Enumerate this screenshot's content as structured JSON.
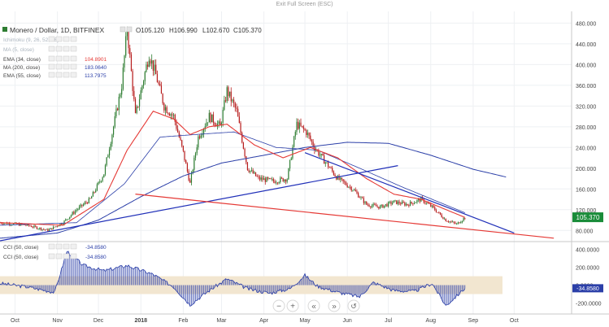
{
  "window": {
    "exit_label": "Exit Full Screen (ESC)"
  },
  "header": {
    "symbol": "Monero / Dollar, 1D, BITFINEX",
    "ohlc": [
      {
        "key": "O",
        "value": "105.120"
      },
      {
        "key": "H",
        "value": "106.990"
      },
      {
        "key": "L",
        "value": "102.670"
      },
      {
        "key": "C",
        "value": "105.370"
      }
    ]
  },
  "indicators": [
    {
      "label": "Ichimoku (9, 26, 52, 26)",
      "value": "",
      "color": "#aab4be"
    },
    {
      "label": "MA (5, close)",
      "value": "",
      "color": "#aab4be"
    },
    {
      "label": "EMA (34, close)",
      "value": "104.8901",
      "color": "#e53935"
    },
    {
      "label": "MA (200, close)",
      "value": "183.0640",
      "color": "#2b3fa8"
    },
    {
      "label": "EMA (55, close)",
      "value": "113.7975",
      "color": "#2b3fa8"
    }
  ],
  "price_axis": {
    "ticks": [
      "480.000",
      "440.000",
      "400.000",
      "360.000",
      "320.000",
      "280.000",
      "240.000",
      "200.000",
      "160.000",
      "120.000",
      "80.000"
    ],
    "current": "105.370"
  },
  "cci_panel": {
    "legends": [
      {
        "label": "CCI (50, close)",
        "value": "-34.8580"
      },
      {
        "label": "CCI (50, close)",
        "value": "-34.8580"
      }
    ],
    "ticks": [
      "400.0000",
      "200.0000",
      "0.0000",
      "-200.0000"
    ]
  },
  "time_axis": [
    "Oct",
    "Nov",
    "Dec",
    "2018",
    "Feb",
    "Mar",
    "Apr",
    "May",
    "Jun",
    "Jul",
    "Aug",
    "Sep",
    "Oct"
  ],
  "toolbar": {
    "minus": "−",
    "plus": "+",
    "back": "«",
    "fwd": "»",
    "reset": "↺"
  },
  "colors": {
    "up": "#2e7d32",
    "down": "#b71c1c",
    "ema34": "#e53935",
    "ema55": "#2b3fa8",
    "ma200": "#2b3fa8",
    "cci": "#2b3fa8",
    "cci_band": "#f2e6d0",
    "trend_blue": "#1f2fb8",
    "trend_red": "#e53935"
  },
  "chart_data": {
    "type": "candlestick",
    "ylim": [
      60,
      490
    ],
    "anchor_closes": [
      [
        "2017-09-20",
        95
      ],
      [
        "2017-10-10",
        90
      ],
      [
        "2017-10-25",
        80
      ],
      [
        "2017-11-05",
        95
      ],
      [
        "2017-11-15",
        120
      ],
      [
        "2017-11-25",
        140
      ],
      [
        "2017-12-05",
        190
      ],
      [
        "2017-12-12",
        280
      ],
      [
        "2017-12-18",
        360
      ],
      [
        "2017-12-22",
        470
      ],
      [
        "2017-12-28",
        300
      ],
      [
        "2018-01-07",
        420
      ],
      [
        "2018-01-12",
        380
      ],
      [
        "2018-01-18",
        320
      ],
      [
        "2018-01-25",
        300
      ],
      [
        "2018-02-01",
        230
      ],
      [
        "2018-02-06",
        170
      ],
      [
        "2018-02-12",
        260
      ],
      [
        "2018-02-20",
        300
      ],
      [
        "2018-02-28",
        280
      ],
      [
        "2018-03-05",
        350
      ],
      [
        "2018-03-12",
        310
      ],
      [
        "2018-03-20",
        200
      ],
      [
        "2018-03-28",
        180
      ],
      [
        "2018-04-08",
        175
      ],
      [
        "2018-04-18",
        180
      ],
      [
        "2018-04-25",
        285
      ],
      [
        "2018-05-02",
        270
      ],
      [
        "2018-05-08",
        240
      ],
      [
        "2018-05-15",
        215
      ],
      [
        "2018-05-25",
        180
      ],
      [
        "2018-06-05",
        160
      ],
      [
        "2018-06-15",
        130
      ],
      [
        "2018-06-25",
        125
      ],
      [
        "2018-07-05",
        135
      ],
      [
        "2018-07-15",
        130
      ],
      [
        "2018-07-25",
        140
      ],
      [
        "2018-08-02",
        125
      ],
      [
        "2018-08-12",
        100
      ],
      [
        "2018-08-20",
        92
      ],
      [
        "2018-08-26",
        105
      ]
    ],
    "ema34_anchors": [
      [
        "2017-09-20",
        95
      ],
      [
        "2017-11-05",
        90
      ],
      [
        "2017-12-05",
        140
      ],
      [
        "2017-12-22",
        235
      ],
      [
        "2018-01-10",
        310
      ],
      [
        "2018-01-25",
        295
      ],
      [
        "2018-02-06",
        265
      ],
      [
        "2018-02-20",
        280
      ],
      [
        "2018-03-05",
        285
      ],
      [
        "2018-03-25",
        245
      ],
      [
        "2018-04-15",
        220
      ],
      [
        "2018-05-05",
        240
      ],
      [
        "2018-05-25",
        220
      ],
      [
        "2018-06-15",
        180
      ],
      [
        "2018-07-05",
        150
      ],
      [
        "2018-07-25",
        140
      ],
      [
        "2018-08-26",
        105
      ]
    ],
    "ema55_anchors": [
      [
        "2017-09-20",
        90
      ],
      [
        "2017-11-15",
        95
      ],
      [
        "2017-12-20",
        170
      ],
      [
        "2018-01-15",
        260
      ],
      [
        "2018-02-10",
        265
      ],
      [
        "2018-03-10",
        270
      ],
      [
        "2018-04-10",
        240
      ],
      [
        "2018-05-10",
        235
      ],
      [
        "2018-06-10",
        200
      ],
      [
        "2018-07-10",
        165
      ],
      [
        "2018-08-26",
        114
      ]
    ],
    "ma200_anchors": [
      [
        "2017-09-20",
        65
      ],
      [
        "2017-11-01",
        75
      ],
      [
        "2017-12-01",
        100
      ],
      [
        "2018-01-01",
        145
      ],
      [
        "2018-02-01",
        185
      ],
      [
        "2018-03-01",
        210
      ],
      [
        "2018-04-01",
        225
      ],
      [
        "2018-05-01",
        240
      ],
      [
        "2018-06-01",
        250
      ],
      [
        "2018-07-01",
        248
      ],
      [
        "2018-08-01",
        225
      ],
      [
        "2018-09-01",
        198
      ],
      [
        "2018-09-25",
        183
      ]
    ],
    "trendlines": [
      {
        "color": "trend_blue",
        "from": [
          "2017-09-20",
          60
        ],
        "to": [
          "2018-07-08",
          205
        ]
      },
      {
        "color": "trend_blue",
        "from": [
          "2018-05-01",
          230
        ],
        "to": [
          "2018-10-01",
          75
        ]
      },
      {
        "color": "trend_red",
        "from": [
          "2017-12-28",
          150
        ],
        "to": [
          "2018-10-30",
          65
        ]
      }
    ],
    "cci_anchors": [
      [
        "2017-09-20",
        20
      ],
      [
        "2017-10-10",
        -20
      ],
      [
        "2017-10-30",
        -80
      ],
      [
        "2017-11-08",
        380
      ],
      [
        "2017-11-20",
        220
      ],
      [
        "2017-12-05",
        160
      ],
      [
        "2017-12-22",
        220
      ],
      [
        "2018-01-10",
        120
      ],
      [
        "2018-01-25",
        -20
      ],
      [
        "2018-02-06",
        -220
      ],
      [
        "2018-02-20",
        -60
      ],
      [
        "2018-03-05",
        70
      ],
      [
        "2018-03-20",
        -40
      ],
      [
        "2018-04-05",
        -90
      ],
      [
        "2018-04-20",
        -40
      ],
      [
        "2018-05-01",
        110
      ],
      [
        "2018-05-10",
        -10
      ],
      [
        "2018-05-25",
        -80
      ],
      [
        "2018-06-10",
        -130
      ],
      [
        "2018-06-20",
        30
      ],
      [
        "2018-07-05",
        -60
      ],
      [
        "2018-07-20",
        -70
      ],
      [
        "2018-08-02",
        20
      ],
      [
        "2018-08-12",
        -230
      ],
      [
        "2018-08-20",
        -120
      ],
      [
        "2018-08-26",
        -35
      ]
    ]
  }
}
